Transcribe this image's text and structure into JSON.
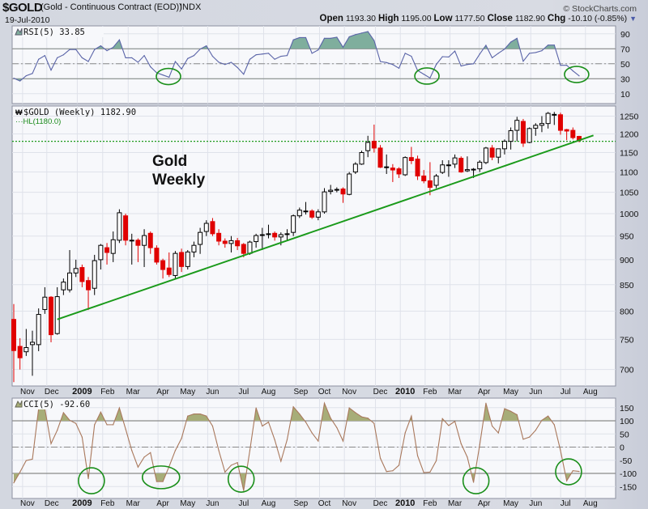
{
  "header": {
    "symbol": "$GOLD",
    "description": "(Gold - Continuous Contract (EOD))",
    "exchange": "INDX",
    "date": "19-Jul-2010",
    "brand": "© StockCharts.com",
    "open_label": "Open",
    "open": "1193.30",
    "high_label": "High",
    "high": "1195.00",
    "low_label": "Low",
    "low": "1177.50",
    "close_label": "Close",
    "close": "1182.90",
    "chg_label": "Chg",
    "chg": "-10.10 (-0.85%)",
    "chg_icon": "triangle-down-icon"
  },
  "annotation": {
    "line1": "Gold",
    "line2": "Weekly"
  },
  "colors": {
    "up_body": "#ffffff",
    "down_body": "#e00000",
    "wick": "#000000",
    "trendline": "#1a9a1a",
    "hl_line": "#1a9a1a",
    "rsi_line": "#5a64a8",
    "rsi_fill": "#7fae9d",
    "cci_line": "#a9785c",
    "cci_fill": "#a7ad78",
    "circle": "#1a8f1a",
    "grid": "#dfe2ea",
    "plot_bg": "#f7f8fb"
  },
  "chart_data": [
    {
      "type": "line",
      "name": "rsi-panel",
      "title": "RSI(5) 33.85",
      "ylim": [
        0,
        100
      ],
      "yticks": [
        90,
        70,
        50,
        30,
        10
      ],
      "levels": {
        "overbought": 70,
        "mid": 50,
        "oversold": 30
      },
      "values": [
        30.7,
        27,
        34,
        37,
        56,
        61,
        41.5,
        58,
        62,
        69,
        69,
        58,
        53,
        69,
        74,
        67.5,
        72,
        82,
        58,
        58,
        52,
        61,
        46,
        38,
        35,
        32,
        53,
        43,
        57,
        61,
        69.6,
        74,
        60,
        52,
        49,
        52,
        45,
        36,
        56,
        62,
        63,
        64,
        56,
        60,
        61,
        82,
        85,
        85,
        64,
        68.5,
        84,
        84,
        85.5,
        72,
        86,
        89,
        91,
        93,
        81,
        53,
        51.6,
        49,
        44,
        64,
        60,
        41,
        36,
        31,
        49,
        59.5,
        59,
        67,
        47,
        49,
        50,
        63,
        74.7,
        58,
        64,
        69.6,
        79,
        84,
        53.4,
        64,
        65,
        67.5,
        75,
        75,
        48,
        48,
        40.5,
        33.85
      ],
      "circles": [
        {
          "week": 24.9,
          "value": 33
        },
        {
          "week": 66.5,
          "value": 33.6
        },
        {
          "week": 90.6,
          "value": 35.7
        }
      ]
    },
    {
      "type": "candlestick",
      "name": "price-panel",
      "title": "$GOLD (Weekly) 1182.90",
      "overlay_label": "HL(1180.0)",
      "hl_level": 1180,
      "scale": "log",
      "ylim": [
        670,
        1275
      ],
      "yticks": [
        700,
        750,
        800,
        850,
        900,
        950,
        1000,
        1050,
        1100,
        1150,
        1200,
        1250
      ],
      "ohlc": [
        [
          785,
          813,
          680,
          731
        ],
        [
          738,
          752,
          700,
          719
        ],
        [
          729,
          768,
          722,
          736
        ],
        [
          741,
          765,
          690,
          745
        ],
        [
          741,
          805,
          730,
          794
        ],
        [
          803,
          845,
          795,
          826
        ],
        [
          826,
          828,
          745,
          758
        ],
        [
          760,
          845,
          758,
          827
        ],
        [
          840,
          862,
          830,
          855
        ],
        [
          840,
          920,
          835,
          873
        ],
        [
          873,
          900,
          865,
          882
        ],
        [
          884,
          890,
          845,
          856
        ],
        [
          858,
          865,
          802,
          840
        ],
        [
          843,
          910,
          830,
          898
        ],
        [
          900,
          933,
          880,
          930
        ],
        [
          925,
          935,
          890,
          915
        ],
        [
          913,
          960,
          895,
          942
        ],
        [
          941,
          1010,
          935,
          1002
        ],
        [
          995,
          1000,
          930,
          941
        ],
        [
          941,
          955,
          890,
          941
        ],
        [
          941,
          945,
          895,
          930
        ],
        [
          930,
          965,
          885,
          951
        ],
        [
          956,
          960,
          912,
          925
        ],
        [
          924,
          930,
          890,
          895
        ],
        [
          898,
          902,
          862,
          880
        ],
        [
          883,
          915,
          865,
          870
        ],
        [
          868,
          918,
          862,
          913
        ],
        [
          915,
          923,
          875,
          886
        ],
        [
          886,
          920,
          880,
          916
        ],
        [
          916,
          938,
          905,
          930
        ],
        [
          932,
          968,
          912,
          958
        ],
        [
          960,
          985,
          950,
          978
        ],
        [
          982,
          990,
          950,
          955
        ],
        [
          956,
          965,
          930,
          939
        ],
        [
          939,
          945,
          925,
          934
        ],
        [
          934,
          950,
          915,
          940
        ],
        [
          940,
          946,
          920,
          929
        ],
        [
          932,
          935,
          905,
          913
        ],
        [
          913,
          940,
          910,
          937
        ],
        [
          938,
          955,
          925,
          951
        ],
        [
          953,
          968,
          920,
          953
        ],
        [
          955,
          975,
          945,
          955
        ],
        [
          956,
          960,
          940,
          948
        ],
        [
          948,
          958,
          930,
          953
        ],
        [
          955,
          965,
          940,
          955
        ],
        [
          958,
          998,
          950,
          995
        ],
        [
          995,
          1014,
          990,
          1008
        ],
        [
          1006,
          1027,
          998,
          1006
        ],
        [
          1006,
          1010,
          988,
          992
        ],
        [
          992,
          1010,
          985,
          1004
        ],
        [
          1004,
          1060,
          1000,
          1051
        ],
        [
          1052,
          1068,
          1045,
          1055
        ],
        [
          1057,
          1062,
          1050,
          1057
        ],
        [
          1058,
          1062,
          1025,
          1046
        ],
        [
          1045,
          1100,
          1043,
          1095
        ],
        [
          1100,
          1125,
          1095,
          1120
        ],
        [
          1120,
          1155,
          1118,
          1150
        ],
        [
          1155,
          1195,
          1138,
          1177
        ],
        [
          1180,
          1226,
          1150,
          1162
        ],
        [
          1162,
          1170,
          1110,
          1112
        ],
        [
          1113,
          1145,
          1095,
          1113
        ],
        [
          1110,
          1120,
          1075,
          1105
        ],
        [
          1108,
          1112,
          1085,
          1095
        ],
        [
          1093,
          1140,
          1090,
          1137
        ],
        [
          1137,
          1165,
          1120,
          1129
        ],
        [
          1133,
          1142,
          1080,
          1090
        ],
        [
          1090,
          1105,
          1072,
          1078
        ],
        [
          1078,
          1125,
          1043,
          1062
        ],
        [
          1067,
          1095,
          1060,
          1090
        ],
        [
          1099,
          1130,
          1095,
          1118
        ],
        [
          1118,
          1130,
          1088,
          1118
        ],
        [
          1120,
          1145,
          1110,
          1136
        ],
        [
          1135,
          1140,
          1098,
          1100
        ],
        [
          1103,
          1140,
          1100,
          1106
        ],
        [
          1107,
          1110,
          1085,
          1107
        ],
        [
          1108,
          1130,
          1100,
          1125
        ],
        [
          1124,
          1165,
          1120,
          1162
        ],
        [
          1162,
          1170,
          1130,
          1138
        ],
        [
          1138,
          1160,
          1122,
          1160
        ],
        [
          1160,
          1185,
          1145,
          1180
        ],
        [
          1180,
          1218,
          1158,
          1209
        ],
        [
          1210,
          1248,
          1180,
          1238
        ],
        [
          1235,
          1242,
          1165,
          1175
        ],
        [
          1177,
          1218,
          1175,
          1215
        ],
        [
          1216,
          1230,
          1195,
          1224
        ],
        [
          1224,
          1250,
          1205,
          1229
        ],
        [
          1229,
          1262,
          1215,
          1258
        ],
        [
          1255,
          1262,
          1225,
          1255
        ],
        [
          1254,
          1260,
          1198,
          1210
        ],
        [
          1212,
          1214,
          1183,
          1208
        ],
        [
          1210,
          1218,
          1185,
          1190
        ],
        [
          1193.3,
          1195,
          1177.5,
          1182.9
        ]
      ],
      "trendline": {
        "start": {
          "week": 7,
          "price": 785
        },
        "end": {
          "week": 93.3,
          "price": 1196
        }
      }
    },
    {
      "type": "line",
      "name": "cci-panel",
      "title": "CCI(5) -92.60",
      "ylim": [
        -180,
        180
      ],
      "yticks": [
        150,
        100,
        50,
        0,
        -50,
        -100,
        -150
      ],
      "levels": {
        "upper": 100,
        "mid": 0,
        "lower": -100
      },
      "values": [
        -136,
        -95,
        -51,
        -46,
        146,
        146,
        13,
        64,
        131,
        102,
        90,
        38,
        -120,
        85,
        133,
        85,
        85,
        149,
        69,
        -13,
        -76,
        -38,
        -21,
        -131,
        -131,
        -74,
        -13,
        33,
        118,
        126,
        126,
        118,
        80,
        -13,
        -95,
        -69,
        -59,
        -165,
        -13,
        149,
        80,
        95,
        28,
        -54,
        28,
        153,
        126,
        95,
        54,
        23,
        167,
        110,
        74,
        23,
        149,
        131,
        115,
        110,
        90,
        -42,
        -93,
        -90,
        -69,
        54,
        118,
        -33,
        -97,
        -95,
        -52,
        108,
        82,
        98,
        13,
        -38,
        -134,
        8,
        167,
        80,
        54,
        146,
        136,
        123,
        30,
        38,
        64,
        102,
        118,
        85,
        -13,
        -128,
        -90,
        -92.6
      ],
      "circles": [
        {
          "week": 12.5,
          "value": -128
        },
        {
          "week": 23.7,
          "value": -115
        },
        {
          "week": 36.6,
          "value": -122
        },
        {
          "week": 74.4,
          "value": -128
        },
        {
          "week": 89.3,
          "value": -94
        }
      ]
    }
  ],
  "x_axis": {
    "labels": [
      {
        "label": "Nov",
        "week": 2.2,
        "year": false
      },
      {
        "label": "Dec",
        "week": 6.1,
        "year": false
      },
      {
        "label": "2009",
        "week": 11,
        "year": true
      },
      {
        "label": "Feb",
        "week": 15.1,
        "year": false
      },
      {
        "label": "Mar",
        "week": 19.2,
        "year": false
      },
      {
        "label": "Apr",
        "week": 24,
        "year": false
      },
      {
        "label": "May",
        "week": 28,
        "year": false
      },
      {
        "label": "Jun",
        "week": 32,
        "year": false
      },
      {
        "label": "Jul",
        "week": 37,
        "year": false
      },
      {
        "label": "Aug",
        "week": 41,
        "year": false
      },
      {
        "label": "Sep",
        "week": 46.2,
        "year": false
      },
      {
        "label": "Oct",
        "week": 50,
        "year": false
      },
      {
        "label": "Nov",
        "week": 54,
        "year": false
      },
      {
        "label": "Dec",
        "week": 59,
        "year": false
      },
      {
        "label": "2010",
        "week": 63,
        "year": true
      },
      {
        "label": "Feb",
        "week": 67,
        "year": false
      },
      {
        "label": "Mar",
        "week": 71,
        "year": false
      },
      {
        "label": "Apr",
        "week": 75.7,
        "year": false
      },
      {
        "label": "May",
        "week": 80,
        "year": false
      },
      {
        "label": "Jun",
        "week": 84,
        "year": false
      },
      {
        "label": "Jul",
        "week": 88.8,
        "year": false
      },
      {
        "label": "Aug",
        "week": 92.8,
        "year": false
      }
    ]
  }
}
